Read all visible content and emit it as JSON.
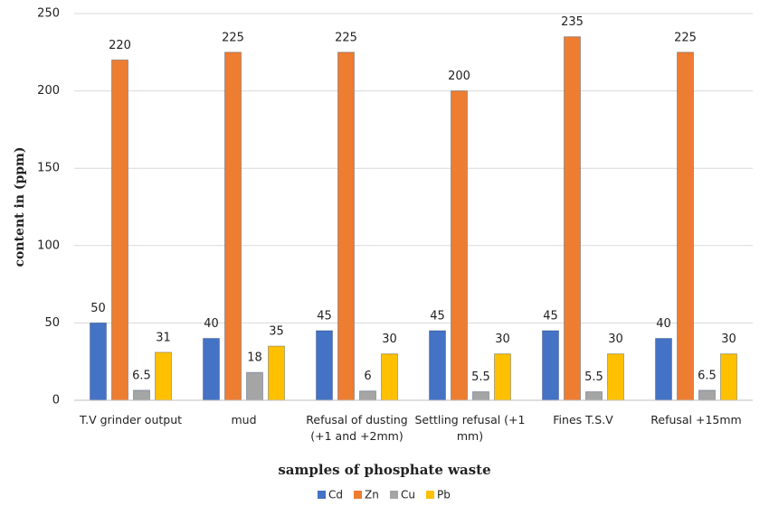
{
  "chart_data": {
    "type": "bar",
    "x_label": "samples of phosphate waste",
    "y_label": "content in (ppm)",
    "categories": [
      "T.V grinder output",
      "mud",
      "Refusal of dusting (+1 and +2mm)",
      "Settling refusal (+1 mm)",
      "Fines T.S.V",
      "Refusal +15mm"
    ],
    "series": [
      {
        "name": "Cd",
        "color": "#4472c4",
        "values": [
          50,
          40,
          45,
          45,
          45,
          40
        ]
      },
      {
        "name": "Zn",
        "color": "#ed7d31",
        "values": [
          220,
          225,
          225,
          200,
          235,
          225
        ]
      },
      {
        "name": "Cu",
        "color": "#a5a5a5",
        "values": [
          6.5,
          18,
          6,
          5.5,
          5.5,
          6.5
        ]
      },
      {
        "name": "Pb",
        "color": "#ffc000",
        "values": [
          31,
          35,
          30,
          30,
          30,
          30
        ]
      }
    ],
    "ylim": [
      0,
      250
    ],
    "yticks": [
      0,
      50,
      100,
      150,
      200,
      250
    ],
    "grid": true,
    "legend": "bottom"
  }
}
